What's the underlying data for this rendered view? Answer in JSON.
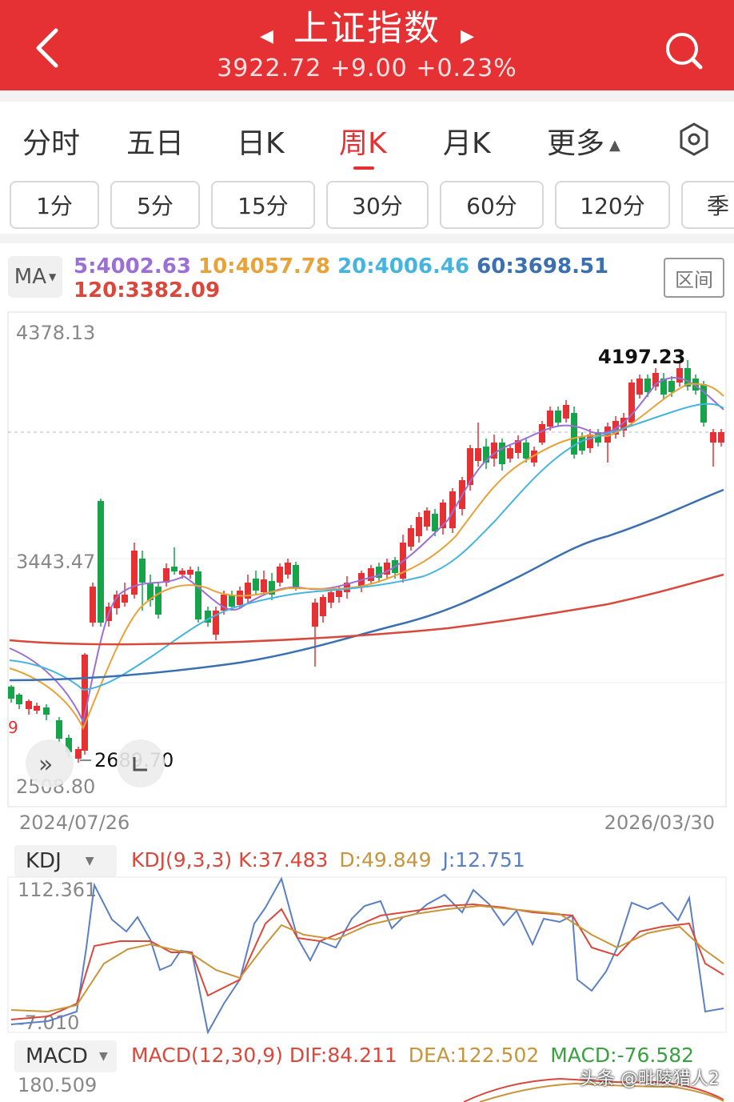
{
  "header": {
    "title": "上证指数",
    "price": "3922.72",
    "change": "+9.00",
    "change_pct": "+0.23%",
    "bg_color": "#e63134"
  },
  "tabs": [
    {
      "label": "分时",
      "active": false
    },
    {
      "label": "五日",
      "active": false
    },
    {
      "label": "日K",
      "active": false
    },
    {
      "label": "周K",
      "active": true
    },
    {
      "label": "月K",
      "active": false
    },
    {
      "label": "更多",
      "active": false
    }
  ],
  "periods": [
    "1分",
    "5分",
    "15分",
    "30分",
    "60分",
    "120分",
    "季"
  ],
  "ma": {
    "selector": "MA",
    "ma5": "5:4002.63",
    "ma10": "10:4057.78",
    "ma20": "20:4006.46",
    "ma60": "60:3698.51",
    "ma120": "120:3382.09",
    "range_button": "区间",
    "colors": {
      "ma5": "#9b6fd6",
      "ma10": "#e8a23a",
      "ma20": "#46b4e0",
      "ma60": "#3a6fb0",
      "ma120": "#d9483b"
    }
  },
  "main_chart": {
    "y_top_label": "4378.13",
    "y_mid_label": "3443.47",
    "y_bottom_label": "2508.80",
    "high_marker": "4197.23",
    "low_marker": "2689.70",
    "td_nine_left": "9",
    "date_start": "2024/07/26",
    "date_end": "2026/03/30"
  },
  "kdj": {
    "selector": "KDJ",
    "params": "KDJ(9,3,3)",
    "k": "K:37.483",
    "d": "D:49.849",
    "j": "J:12.751",
    "y_top": "112.361",
    "y_bottom": "-7.010"
  },
  "macd": {
    "selector": "MACD",
    "params": "MACD(12,30,9)",
    "dif": "DIF:84.211",
    "dea": "DEA:122.502",
    "macd": "MACD:-76.582",
    "y_top": "180.509"
  },
  "watermark": "头条 @毗陵猎人2"
}
